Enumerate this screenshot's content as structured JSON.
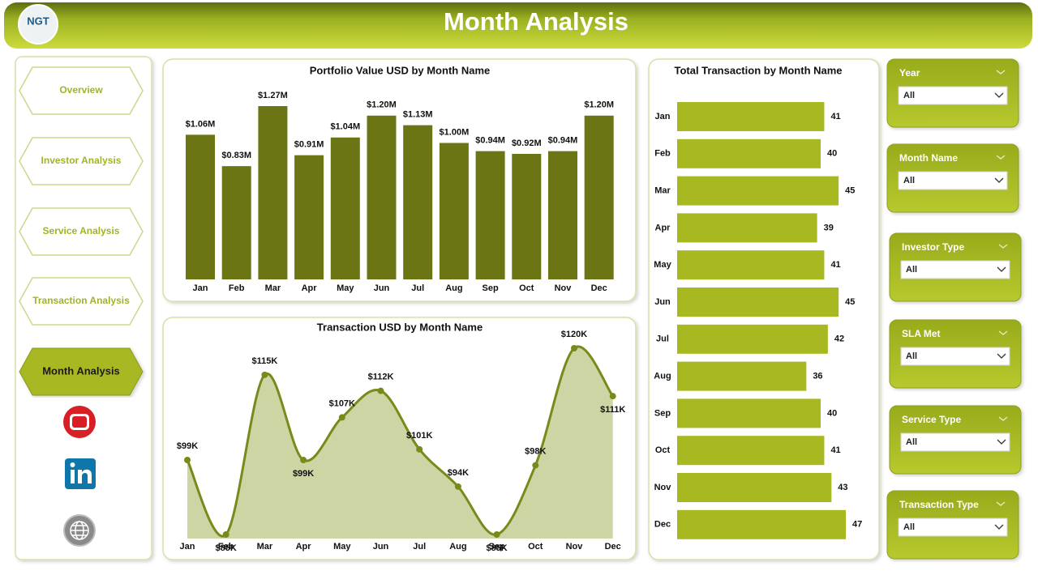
{
  "header": {
    "logo": "NGT",
    "title": "Month Analysis"
  },
  "nav": [
    {
      "label": "Overview"
    },
    {
      "label": "Investor Analysis"
    },
    {
      "label": "Service Analysis"
    },
    {
      "label": "Transaction Analysis"
    },
    {
      "label": "Month Analysis",
      "active": true
    }
  ],
  "chart_data": [
    {
      "type": "bar",
      "title": "Portfolio Value USD by Month Name",
      "color": "#6b7514",
      "categories": [
        "Jan",
        "Feb",
        "Mar",
        "Apr",
        "May",
        "Jun",
        "Jul",
        "Aug",
        "Sep",
        "Oct",
        "Nov",
        "Dec"
      ],
      "values": [
        1.06,
        0.83,
        1.27,
        0.91,
        1.04,
        1.2,
        1.13,
        1.0,
        0.94,
        0.92,
        0.94,
        1.2
      ],
      "value_labels": [
        "$1.06M",
        "$0.83M",
        "$1.27M",
        "$0.91M",
        "$1.04M",
        "$1.20M",
        "$1.13M",
        "$1.00M",
        "$0.94M",
        "$0.92M",
        "$0.94M",
        "$1.20M"
      ]
    },
    {
      "type": "area",
      "title": "Transaction USD by Month Name",
      "color": "#7a8a1a",
      "fill": "#cdd5a5",
      "categories": [
        "Jan",
        "Feb",
        "Mar",
        "Apr",
        "May",
        "Jun",
        "Jul",
        "Aug",
        "Sep",
        "Oct",
        "Nov",
        "Dec"
      ],
      "values": [
        99,
        85,
        115,
        99,
        107,
        112,
        101,
        94,
        85,
        98,
        120,
        111
      ],
      "value_labels": [
        "$99K",
        "$85K",
        "$115K",
        "$99K",
        "$107K",
        "$112K",
        "$101K",
        "$94K",
        "$85K",
        "$98K",
        "$120K",
        "$111K"
      ]
    },
    {
      "type": "hbar",
      "title": "Total Transaction by Month Name",
      "color": "#a8b820",
      "categories": [
        "Jan",
        "Feb",
        "Mar",
        "Apr",
        "May",
        "Jun",
        "Jul",
        "Aug",
        "Sep",
        "Oct",
        "Nov",
        "Dec"
      ],
      "values": [
        41,
        40,
        45,
        39,
        41,
        45,
        42,
        36,
        40,
        41,
        43,
        47
      ]
    }
  ],
  "filters": [
    {
      "label": "Year",
      "value": "All"
    },
    {
      "label": "Month Name",
      "value": "All"
    },
    {
      "label": "Investor Type",
      "value": "All"
    },
    {
      "label": "SLA Met",
      "value": "All"
    },
    {
      "label": "Service Type",
      "value": "All"
    },
    {
      "label": "Transaction Type",
      "value": "All"
    }
  ]
}
